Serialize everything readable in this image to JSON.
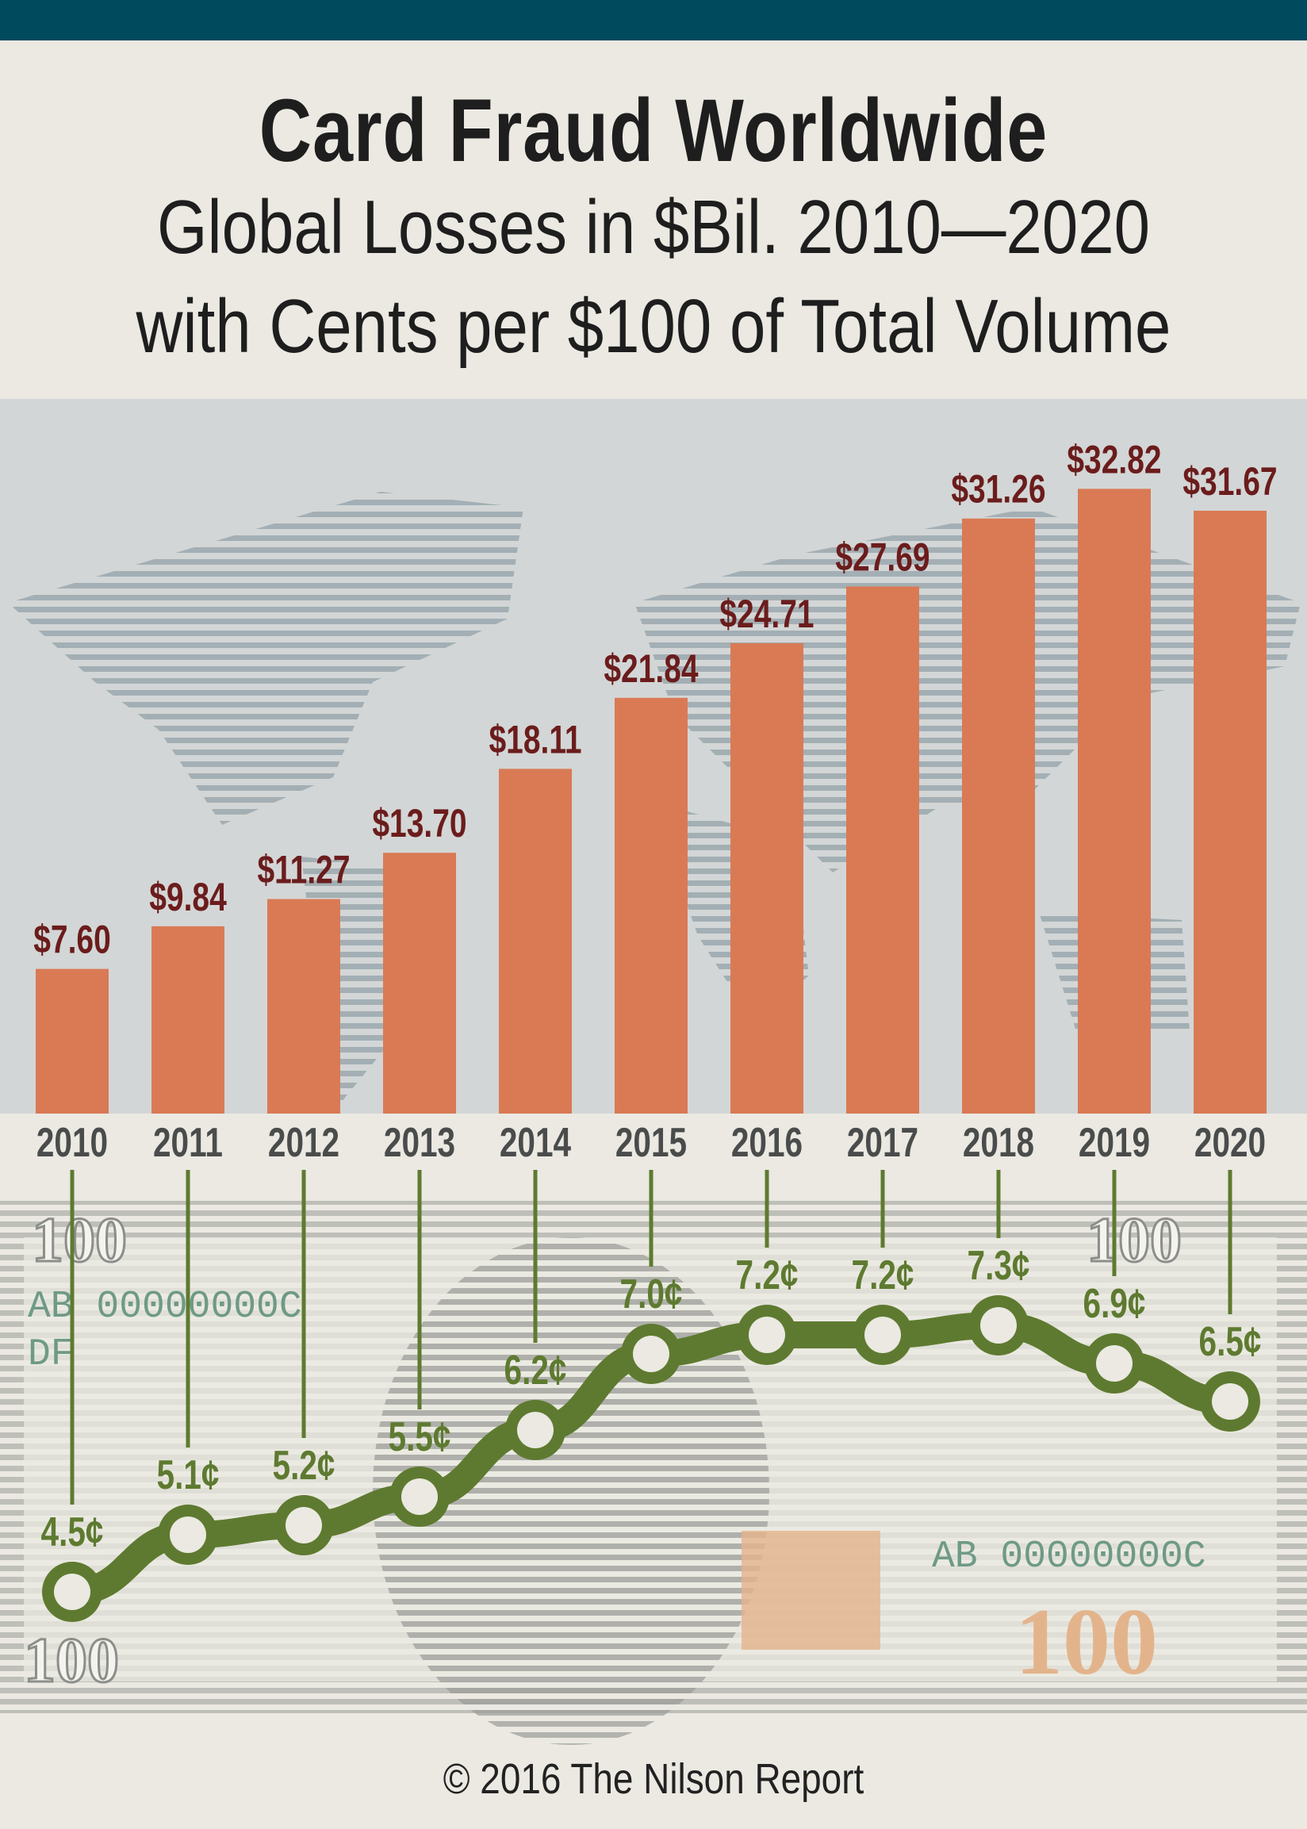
{
  "title": "Card Fraud Worldwide",
  "subtitle_line1": "Global Losses in $Bil. 2010—2020",
  "subtitle_line2": "with Cents per $100 of Total Volume",
  "footer": "© 2016 The Nilson Report",
  "bill_text": {
    "denomination": "100",
    "serial": "AB 00000000C",
    "series_letters": "DF"
  },
  "colors": {
    "bar": "#d97a55",
    "bar_label": "#6b1c1c",
    "line": "#5e7a30",
    "topbar": "#004a5e",
    "chart_bg": "#d3d6d6",
    "year_label": "#4a4c4c"
  },
  "chart_data": [
    {
      "type": "bar",
      "categories": [
        "2010",
        "2011",
        "2012",
        "2013",
        "2014",
        "2015",
        "2016",
        "2017",
        "2018",
        "2019",
        "2020"
      ],
      "values": [
        7.6,
        9.84,
        11.27,
        13.7,
        18.11,
        21.84,
        24.71,
        27.69,
        31.26,
        32.82,
        31.67
      ],
      "data_labels": [
        "$7.60",
        "$9.84",
        "$11.27",
        "$13.70",
        "$18.11",
        "$21.84",
        "$24.71",
        "$27.69",
        "$31.26",
        "$32.82",
        "$31.67"
      ],
      "ylabel": "Global Losses in $Bil.",
      "ylim": [
        0,
        35
      ],
      "grid": false
    },
    {
      "type": "line",
      "categories": [
        "2010",
        "2011",
        "2012",
        "2013",
        "2014",
        "2015",
        "2016",
        "2017",
        "2018",
        "2019",
        "2020"
      ],
      "values": [
        4.5,
        5.1,
        5.2,
        5.5,
        6.2,
        7.0,
        7.2,
        7.2,
        7.3,
        6.9,
        6.5
      ],
      "data_labels": [
        "4.5¢",
        "5.1¢",
        "5.2¢",
        "5.5¢",
        "6.2¢",
        "7.0¢",
        "7.2¢",
        "7.2¢",
        "7.3¢",
        "6.9¢",
        "6.5¢"
      ],
      "ylabel": "Cents per $100 of Total Volume",
      "grid": false
    }
  ]
}
